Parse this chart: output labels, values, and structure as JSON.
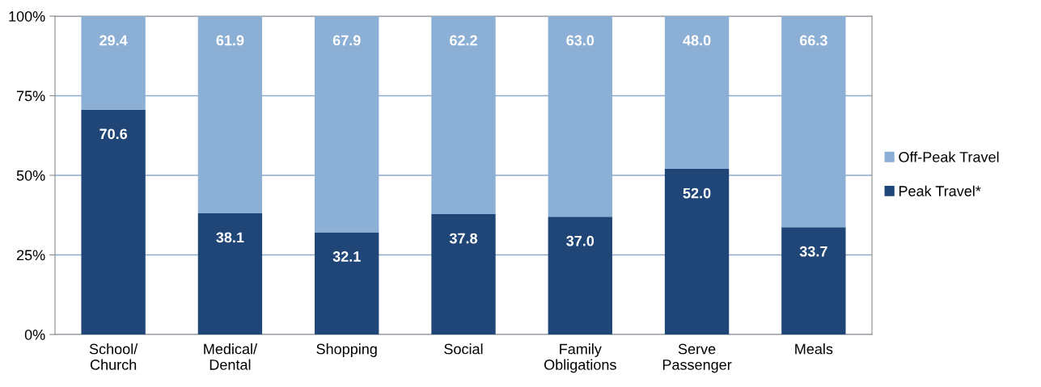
{
  "chart_data": {
    "type": "bar",
    "stacked": true,
    "categories": [
      "School/\nChurch",
      "Medical/\nDental",
      "Shopping",
      "Social",
      "Family\nObligations",
      "Serve\nPassenger",
      "Meals"
    ],
    "series": [
      {
        "name": "Peak Travel*",
        "color": "#1f4677",
        "values": [
          70.6,
          38.1,
          32.1,
          37.8,
          37.0,
          52.0,
          33.7
        ],
        "value_labels": [
          "70.6",
          "38.1",
          "32.1",
          "37.8",
          "37.0",
          "52.0",
          "33.7"
        ]
      },
      {
        "name": "Off-Peak Travel",
        "color": "#8cafd6",
        "values": [
          29.4,
          61.9,
          67.9,
          62.2,
          63.0,
          48.0,
          66.3
        ],
        "value_labels": [
          "29.4",
          "61.9",
          "67.9",
          "62.2",
          "63.0",
          "48.0",
          "66.3"
        ]
      }
    ],
    "ylim": [
      0,
      100
    ],
    "yticks": [
      {
        "value": 0,
        "label": "0%"
      },
      {
        "value": 25,
        "label": "25%"
      },
      {
        "value": 50,
        "label": "50%"
      },
      {
        "value": 75,
        "label": "75%"
      },
      {
        "value": 100,
        "label": "100%"
      }
    ],
    "grid": "y",
    "legend": "right"
  }
}
